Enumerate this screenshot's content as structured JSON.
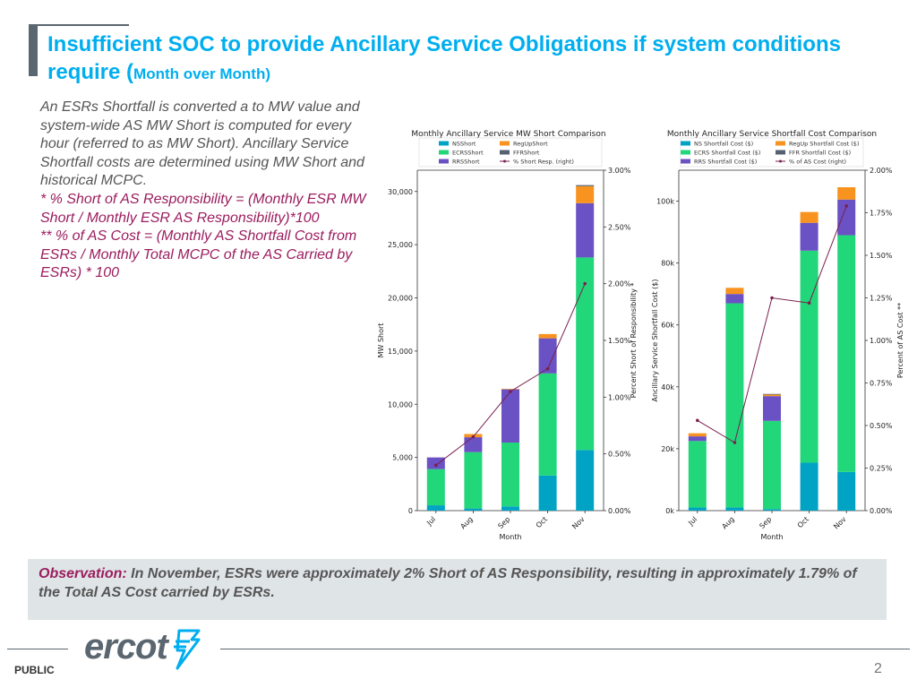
{
  "slide": {
    "title_main": "Insufficient SOC to provide Ancillary Service Obligations if system conditions require (",
    "title_sub": "Month over Month)",
    "paragraph": "An ESRs Shortfall is converted a to MW value and system-wide AS MW Short is computed for every hour (referred to as MW Short). Ancillary Service Shortfall costs are determined using MW Short and historical MCPC.",
    "note1": "* % Short of AS Responsibility = (Monthly ESR MW Short / Monthly ESR AS Responsibility)*100",
    "note2": "** % of AS Cost = (Monthly AS Shortfall Cost from ESRs / Monthly Total MCPC of the AS Carried by ESRs) * 100",
    "observation_label": "Observation:",
    "observation_text": " In November, ESRs were approximately 2% Short of AS Responsibility, resulting in approximately 1.79% of the Total AS Cost carried by ESRs.",
    "logo_text": "ercot",
    "footer_label": "PUBLIC",
    "page_number": "2"
  },
  "chart_data": [
    {
      "type": "bar",
      "stacked": true,
      "title": "Monthly Ancillary Service MW Short Comparison",
      "categories": [
        "Jul",
        "Aug",
        "Sep",
        "Oct",
        "Nov"
      ],
      "xlabel": "Month",
      "ylabel": "MW Short",
      "ylim": [
        0,
        32000
      ],
      "yticks": [
        0,
        5000,
        10000,
        15000,
        20000,
        25000,
        30000
      ],
      "ytick_labels": [
        "0",
        "5,000",
        "10,000",
        "15,000",
        "20,000",
        "25,000",
        "30,000"
      ],
      "series": [
        {
          "name": "NSShort",
          "color": "#00a3c4",
          "values": [
            500,
            200,
            400,
            3300,
            5700
          ]
        },
        {
          "name": "ECRSShort",
          "color": "#22d67a",
          "values": [
            3400,
            5300,
            6000,
            9600,
            18100
          ]
        },
        {
          "name": "RRSShort",
          "color": "#6a52c4",
          "values": [
            1100,
            1400,
            5000,
            3300,
            5100
          ]
        },
        {
          "name": "RegUpShort",
          "color": "#f7931e",
          "values": [
            0,
            300,
            50,
            400,
            1600
          ]
        },
        {
          "name": "FFRShort",
          "color": "#556070",
          "values": [
            0,
            0,
            0,
            0,
            100
          ]
        }
      ],
      "line": {
        "name": "% Short Resp. (right)",
        "color": "#7a1f4e",
        "values": [
          0.4,
          0.65,
          1.05,
          1.25,
          2.0
        ]
      },
      "y2label": "Percent Short of Responsibility *",
      "y2lim": [
        0,
        3.0
      ],
      "y2ticks": [
        0,
        0.5,
        1.0,
        1.5,
        2.0,
        2.5,
        3.0
      ],
      "y2tick_labels": [
        "0.00%",
        "0.50%",
        "1.00%",
        "1.50%",
        "2.00%",
        "2.50%",
        "3.00%"
      ],
      "legend_position": "top"
    },
    {
      "type": "bar",
      "stacked": true,
      "title": "Monthly Ancillary Service Shortfall Cost Comparison",
      "categories": [
        "Jul",
        "Aug",
        "Sep",
        "Oct",
        "Nov"
      ],
      "xlabel": "Month",
      "ylabel": "Ancillary Service Shortfall Cost ($)",
      "ylim": [
        0,
        110000
      ],
      "yticks": [
        0,
        20000,
        40000,
        60000,
        80000,
        100000
      ],
      "ytick_labels": [
        "0k",
        "20k",
        "40k",
        "60k",
        "80k",
        "100k"
      ],
      "series": [
        {
          "name": "NS Shortfall Cost ($)",
          "color": "#00a3c4",
          "values": [
            1000,
            1000,
            500,
            15500,
            12500
          ]
        },
        {
          "name": "ECRS Shortfall Cost ($)",
          "color": "#22d67a",
          "values": [
            21500,
            66000,
            28500,
            68500,
            76500
          ]
        },
        {
          "name": "RRS Shortfall Cost ($)",
          "color": "#6a52c4",
          "values": [
            1500,
            3000,
            8000,
            9000,
            11500
          ]
        },
        {
          "name": "RegUp Shortfall Cost ($)",
          "color": "#f7931e",
          "values": [
            1000,
            2000,
            500,
            3500,
            4000
          ]
        },
        {
          "name": "FFR Shortfall Cost ($)",
          "color": "#556070",
          "values": [
            0,
            0,
            200,
            0,
            0
          ]
        }
      ],
      "line": {
        "name": "% of AS Cost (right)",
        "color": "#7a1f4e",
        "values": [
          0.53,
          0.4,
          1.25,
          1.22,
          1.79
        ]
      },
      "y2label": "Percent of AS Cost **",
      "y2lim": [
        0,
        2.0
      ],
      "y2ticks": [
        0,
        0.25,
        0.5,
        0.75,
        1.0,
        1.25,
        1.5,
        1.75,
        2.0
      ],
      "y2tick_labels": [
        "0.00%",
        "0.25%",
        "0.50%",
        "0.75%",
        "1.00%",
        "1.25%",
        "1.50%",
        "1.75%",
        "2.00%"
      ],
      "legend_position": "top"
    }
  ]
}
